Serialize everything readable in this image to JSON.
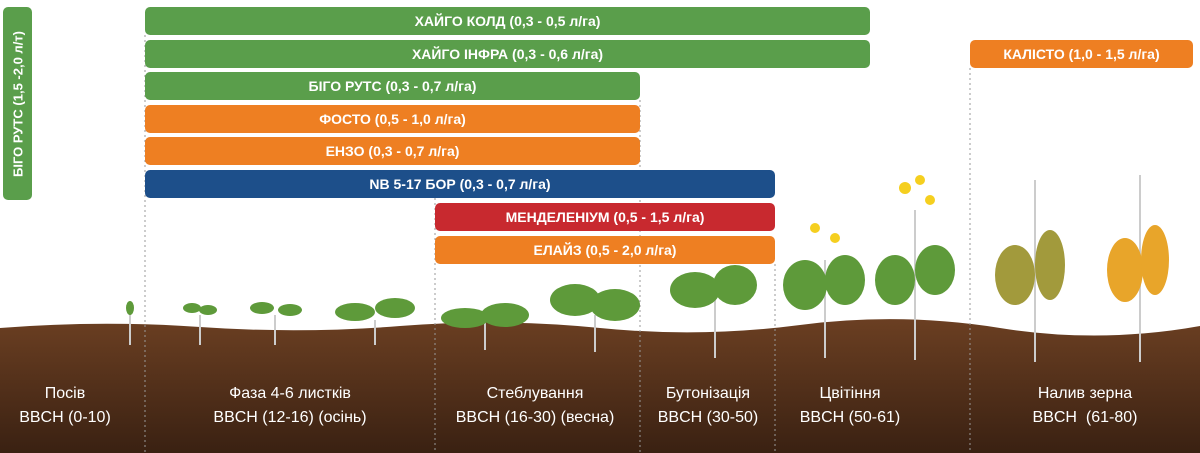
{
  "left_bar": {
    "label": "БІГО РУТС (1,5 -2,0 л/т)"
  },
  "bars": [
    {
      "label": "ХАЙГО КОЛД (0,3 - 0,5 л/га)"
    },
    {
      "label": "ХАЙГО ІНФРА (0,3 - 0,6 л/га)"
    },
    {
      "label": "КАЛІСТО (1,0 - 1,5 л/га)"
    },
    {
      "label": "БІГО РУТС (0,3 - 0,7 л/га)"
    },
    {
      "label": "ФОСТО (0,5 - 1,0 л/га)"
    },
    {
      "label": "ЕНЗО (0,3 - 0,7 л/га)"
    },
    {
      "label": "NB 5-17 БОР (0,3 - 0,7 л/га)"
    },
    {
      "label": "МЕНДЕЛЕНІУМ (0,5 - 1,5 л/га)"
    },
    {
      "label": "ЕЛАЙЗ (0,5 - 2,0 л/га)"
    }
  ],
  "stages": [
    {
      "name": "Посів",
      "code": "BBCH (0-10)"
    },
    {
      "name": "Фаза 4-6 листків",
      "code": "BBCH (12-16) (осінь)"
    },
    {
      "name": "Стеблування",
      "code": "BBCH (16-30) (весна)"
    },
    {
      "name": "Бутонізація",
      "code": "BBCH (30-50)"
    },
    {
      "name": "Цвітіння",
      "code": "BBCH (50-61)"
    },
    {
      "name": "Налив зерна",
      "code": "BBCH  (61-80)"
    }
  ]
}
